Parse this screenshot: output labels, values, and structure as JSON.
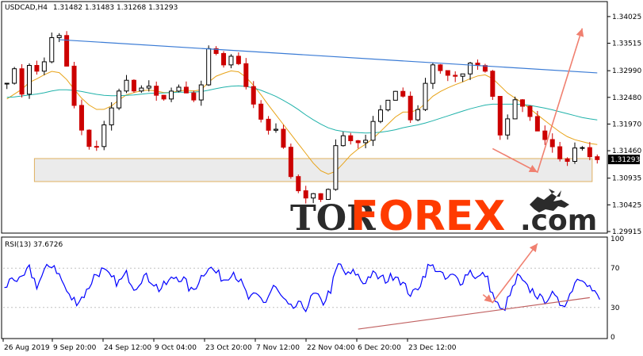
{
  "header": {
    "symbol": "USDCAD,H4",
    "ohlc": "1.31482 1.31483 1.31268 1.31293"
  },
  "price_axis": {
    "ticks": [
      "1.34025",
      "1.33515",
      "1.32990",
      "1.32480",
      "1.31970",
      "1.31460",
      "1.30935",
      "1.30425",
      "1.29915"
    ],
    "current_price": "1.31293"
  },
  "rsi_panel": {
    "label": "RSI(13) 37.6726",
    "ticks": [
      "100",
      "70",
      "30",
      "0"
    ]
  },
  "time_axis": {
    "labels": [
      "26 Aug 2019",
      "9 Sep 20:00",
      "24 Sep 12:00",
      "9 Oct 04:00",
      "23 Oct 20:00",
      "7 Nov 12:00",
      "22 Nov 04:00",
      "6 Dec 20:00",
      "23 Dec 12:00"
    ]
  },
  "watermark": {
    "part1": "TOR",
    "part2": "FOREX",
    "part3": ".com"
  },
  "colors": {
    "bull": "#000000",
    "bear": "#cc0000",
    "ma_fast": "#e8a317",
    "ma_slow": "#20b2aa",
    "trendline": "#3a7bd5",
    "arrow": "#f08070",
    "support_zone": "#e8e8e8",
    "rsi": "#0000ff",
    "rsi_trend": "#c06060"
  },
  "chart_data": {
    "type": "candlestick",
    "symbol": "USDCAD",
    "timeframe": "H4",
    "ylim": [
      1.29915,
      1.34281
    ],
    "close_path": [
      1.3275,
      1.3305,
      1.3245,
      1.3328,
      1.3285,
      1.3335,
      1.3385,
      1.3345,
      1.325,
      1.3195,
      1.3155,
      1.315,
      1.3195,
      1.323,
      1.3265,
      1.3285,
      1.325,
      1.3275,
      1.3265,
      1.3238,
      1.3255,
      1.327,
      1.326,
      1.324,
      1.327,
      1.3345,
      1.333,
      1.3305,
      1.3335,
      1.33,
      1.3245,
      1.3225,
      1.318,
      1.3195,
      1.3165,
      1.31,
      1.307,
      1.3055,
      1.3065,
      1.305,
      1.308,
      1.3195,
      1.316,
      1.317,
      1.315,
      1.3195,
      1.322,
      1.324,
      1.326,
      1.325,
      1.32,
      1.323,
      1.329,
      1.332,
      1.3285,
      1.3295,
      1.328,
      1.3315,
      1.331,
      1.3305,
      1.3255,
      1.3175,
      1.321,
      1.325,
      1.3225,
      1.3205,
      1.317,
      1.3165,
      1.314,
      1.3115,
      1.315,
      1.3155,
      1.3135,
      1.3129
    ],
    "ma_fast_path": [
      1.3245,
      1.3255,
      1.3265,
      1.328,
      1.3285,
      1.3295,
      1.33,
      1.329,
      1.327,
      1.325,
      1.3235,
      1.3225,
      1.3225,
      1.3232,
      1.3245,
      1.3255,
      1.3258,
      1.3262,
      1.3262,
      1.3258,
      1.3256,
      1.326,
      1.3262,
      1.326,
      1.3262,
      1.3278,
      1.329,
      1.3295,
      1.33,
      1.3295,
      1.328,
      1.3262,
      1.324,
      1.322,
      1.32,
      1.318,
      1.316,
      1.314,
      1.312,
      1.3105,
      1.31,
      1.311,
      1.313,
      1.3145,
      1.3155,
      1.3165,
      1.318,
      1.3195,
      1.321,
      1.322,
      1.322,
      1.3225,
      1.324,
      1.3255,
      1.3262,
      1.327,
      1.3275,
      1.3282,
      1.3288,
      1.3292,
      1.3285,
      1.327,
      1.3255,
      1.3245,
      1.3235,
      1.3222,
      1.321,
      1.3198,
      1.3186,
      1.3175,
      1.3168,
      1.3164,
      1.316,
      1.3158
    ],
    "ma_slow_path": [
      1.3248,
      1.3249,
      1.3251,
      1.3253,
      1.3255,
      1.3258,
      1.3262,
      1.3263,
      1.3262,
      1.326,
      1.3257,
      1.3254,
      1.3252,
      1.3251,
      1.3251,
      1.3252,
      1.3253,
      1.3255,
      1.3256,
      1.3256,
      1.3257,
      1.3258,
      1.3258,
      1.3258,
      1.3259,
      1.3262,
      1.3265,
      1.3268,
      1.327,
      1.327,
      1.3268,
      1.3264,
      1.3258,
      1.3252,
      1.3244,
      1.3235,
      1.3225,
      1.3214,
      1.3204,
      1.3195,
      1.3188,
      1.3184,
      1.3182,
      1.3181,
      1.318,
      1.318,
      1.3181,
      1.3183,
      1.3186,
      1.319,
      1.3193,
      1.3196,
      1.32,
      1.3205,
      1.321,
      1.3215,
      1.322,
      1.3225,
      1.3229,
      1.3233,
      1.3235,
      1.3235,
      1.3235,
      1.3235,
      1.3234,
      1.3232,
      1.3229,
      1.3226,
      1.3222,
      1.3218,
      1.3214,
      1.321,
      1.3207,
      1.3205
    ],
    "trendline": {
      "start": 1.33583,
      "end": 1.32948,
      "start_idx": 7,
      "end_idx": 79
    },
    "support_zone": {
      "low": 1.3087,
      "high": 1.3131,
      "start_idx": 4,
      "end_idx": 78
    },
    "projection": [
      {
        "idx": 65,
        "price": 1.315
      },
      {
        "idx": 71,
        "price": 1.3105
      },
      {
        "idx": 77,
        "price": 1.338
      }
    ],
    "rsi_ylim": [
      0,
      100
    ],
    "rsi_path": [
      48,
      62,
      55,
      70,
      52,
      68,
      75,
      58,
      40,
      36,
      45,
      62,
      68,
      60,
      55,
      64,
      50,
      62,
      58,
      48,
      55,
      62,
      58,
      45,
      60,
      72,
      65,
      58,
      68,
      55,
      38,
      42,
      35,
      52,
      40,
      28,
      32,
      30,
      44,
      34,
      48,
      75,
      62,
      66,
      55,
      64,
      60,
      58,
      65,
      52,
      42,
      55,
      72,
      70,
      58,
      62,
      56,
      68,
      60,
      64,
      40,
      24,
      42,
      62,
      50,
      46,
      36,
      44,
      34,
      36,
      58,
      62,
      48,
      38
    ],
    "rsi_trendline": {
      "start": 8,
      "end": 40,
      "start_idx": 47,
      "end_idx": 78
    },
    "rsi_projection": [
      {
        "idx": 65,
        "value": 35
      },
      {
        "idx": 71,
        "value": 95
      }
    ]
  }
}
